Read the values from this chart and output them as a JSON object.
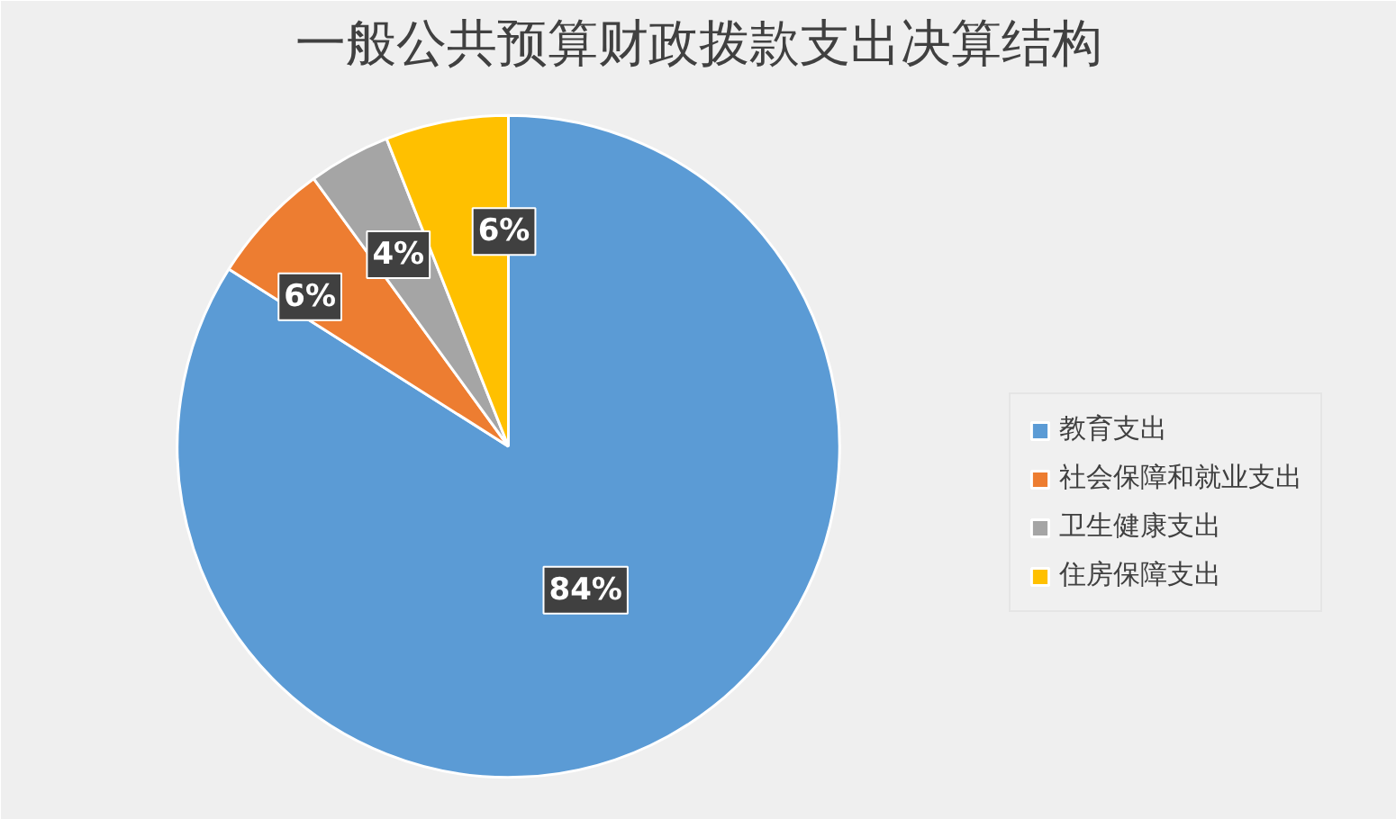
{
  "chart_data": {
    "type": "pie",
    "title": "一般公共预算财政拨款支出决算结构",
    "categories": [
      "教育支出",
      "社会保障和就业支出",
      "卫生健康支出",
      "住房保障支出"
    ],
    "values": [
      84,
      6,
      4,
      6
    ],
    "colors": [
      "#5b9bd5",
      "#ed7d31",
      "#a5a5a5",
      "#ffc000"
    ],
    "value_labels": [
      "84%",
      "6%",
      "4%",
      "6%"
    ],
    "legend": "right"
  }
}
